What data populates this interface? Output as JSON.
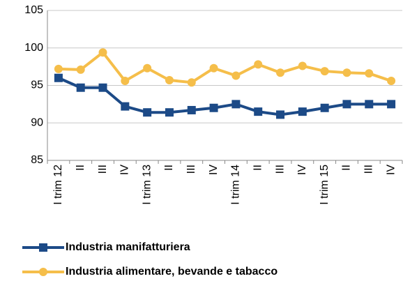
{
  "chart_data": {
    "type": "line",
    "categories": [
      "I trim 12",
      "II",
      "III",
      "IV",
      "I trim 13",
      "II",
      "III",
      "IV",
      "I trim 14",
      "II",
      "III",
      "IV",
      "I trim 15",
      "II",
      "III",
      "IV"
    ],
    "series": [
      {
        "name": "Industria manifatturiera",
        "color": "#1c4a87",
        "marker": "square",
        "values": [
          96.0,
          94.7,
          94.7,
          92.2,
          91.4,
          91.4,
          91.7,
          92.0,
          92.5,
          91.5,
          91.1,
          91.5,
          92.0,
          92.5,
          92.5,
          92.5
        ]
      },
      {
        "name": "Industria alimentare, bevande e tabacco",
        "color": "#f5be4a",
        "marker": "circle",
        "values": [
          97.2,
          97.1,
          99.4,
          95.6,
          97.3,
          95.7,
          95.4,
          97.3,
          96.3,
          97.8,
          96.7,
          97.6,
          96.9,
          96.7,
          96.6,
          95.6
        ]
      }
    ],
    "ylim": [
      85,
      105
    ],
    "yticks": [
      85,
      90,
      95,
      100,
      105
    ],
    "grid": true,
    "legend": "bottom"
  }
}
